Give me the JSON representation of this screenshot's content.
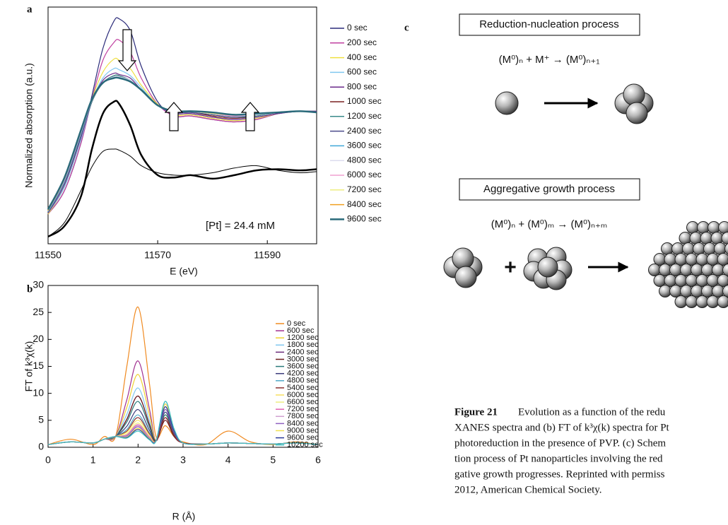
{
  "chart_data": [
    {
      "type": "line",
      "panel": "a",
      "ylabel": "Normalized absorption (a.u.)",
      "xlabel": "E (eV)",
      "annotation": "[Pt] = 24.4 mM",
      "xlim": [
        11550,
        11599
      ],
      "ylim": [
        0,
        2
      ],
      "xticks": [
        11550,
        11570,
        11590
      ],
      "x": [
        11550,
        11553,
        11556,
        11558,
        11560,
        11562,
        11563,
        11565,
        11567,
        11570,
        11573,
        11576,
        11580,
        11584,
        11588,
        11592,
        11596,
        11599
      ],
      "series": [
        {
          "name": "0 sec",
          "color": "#2b2b7a",
          "values": [
            0.25,
            0.45,
            0.85,
            1.25,
            1.65,
            1.88,
            1.9,
            1.8,
            1.5,
            1.2,
            1.08,
            1.08,
            1.05,
            1.03,
            1.05,
            1.1,
            1.12,
            1.12
          ]
        },
        {
          "name": "200 sec",
          "color": "#c040a0",
          "values": [
            0.25,
            0.45,
            0.85,
            1.22,
            1.55,
            1.7,
            1.72,
            1.62,
            1.4,
            1.18,
            1.08,
            1.08,
            1.05,
            1.03,
            1.05,
            1.1,
            1.12,
            1.12
          ]
        },
        {
          "name": "400 sec",
          "color": "#efe040",
          "values": [
            0.25,
            0.48,
            0.88,
            1.22,
            1.45,
            1.56,
            1.55,
            1.48,
            1.34,
            1.18,
            1.09,
            1.09,
            1.06,
            1.04,
            1.06,
            1.1,
            1.12,
            1.12
          ]
        },
        {
          "name": "600 sec",
          "color": "#80c8f0",
          "values": [
            0.26,
            0.48,
            0.88,
            1.2,
            1.4,
            1.48,
            1.47,
            1.42,
            1.32,
            1.17,
            1.1,
            1.1,
            1.07,
            1.05,
            1.07,
            1.1,
            1.12,
            1.12
          ]
        },
        {
          "name": "800 sec",
          "color": "#6a2a8a",
          "values": [
            0.26,
            0.5,
            0.9,
            1.2,
            1.38,
            1.44,
            1.43,
            1.4,
            1.3,
            1.17,
            1.1,
            1.1,
            1.07,
            1.05,
            1.07,
            1.1,
            1.12,
            1.12
          ]
        },
        {
          "name": "1000 sec",
          "color": "#7a2020",
          "values": [
            0.27,
            0.52,
            0.92,
            1.2,
            1.36,
            1.42,
            1.42,
            1.38,
            1.3,
            1.17,
            1.11,
            1.11,
            1.08,
            1.06,
            1.08,
            1.11,
            1.12,
            1.11
          ]
        },
        {
          "name": "1200 sec",
          "color": "#3a8a8a",
          "values": [
            0.27,
            0.52,
            0.92,
            1.2,
            1.36,
            1.42,
            1.42,
            1.38,
            1.3,
            1.17,
            1.11,
            1.11,
            1.09,
            1.07,
            1.08,
            1.11,
            1.12,
            1.11
          ]
        },
        {
          "name": "2400 sec",
          "color": "#4a4a8a",
          "values": [
            0.27,
            0.53,
            0.93,
            1.21,
            1.36,
            1.41,
            1.41,
            1.38,
            1.3,
            1.17,
            1.11,
            1.11,
            1.09,
            1.07,
            1.09,
            1.11,
            1.12,
            1.11
          ]
        },
        {
          "name": "3600 sec",
          "color": "#40a8d8",
          "values": [
            0.27,
            0.53,
            0.93,
            1.21,
            1.36,
            1.41,
            1.41,
            1.38,
            1.3,
            1.17,
            1.12,
            1.12,
            1.1,
            1.08,
            1.09,
            1.11,
            1.12,
            1.11
          ]
        },
        {
          "name": "4800 sec",
          "color": "#dcdcee",
          "values": [
            0.28,
            0.54,
            0.94,
            1.21,
            1.36,
            1.41,
            1.41,
            1.38,
            1.3,
            1.17,
            1.12,
            1.12,
            1.1,
            1.08,
            1.09,
            1.11,
            1.12,
            1.11
          ]
        },
        {
          "name": "6000 sec",
          "color": "#f0a0d0",
          "values": [
            0.28,
            0.54,
            0.94,
            1.21,
            1.36,
            1.4,
            1.4,
            1.37,
            1.3,
            1.17,
            1.12,
            1.12,
            1.1,
            1.08,
            1.1,
            1.11,
            1.12,
            1.11
          ]
        },
        {
          "name": "7200 sec",
          "color": "#eeee80",
          "values": [
            0.28,
            0.55,
            0.95,
            1.22,
            1.36,
            1.4,
            1.4,
            1.37,
            1.3,
            1.17,
            1.12,
            1.12,
            1.1,
            1.09,
            1.1,
            1.11,
            1.12,
            1.11
          ]
        },
        {
          "name": "8400 sec",
          "color": "#f0a020",
          "values": [
            0.28,
            0.55,
            0.95,
            1.22,
            1.36,
            1.4,
            1.4,
            1.37,
            1.3,
            1.17,
            1.12,
            1.12,
            1.11,
            1.09,
            1.1,
            1.11,
            1.12,
            1.11
          ]
        },
        {
          "name": "9600 sec",
          "color": "#2a6a7a",
          "width": 2.5,
          "values": [
            0.29,
            0.56,
            0.96,
            1.22,
            1.36,
            1.4,
            1.4,
            1.37,
            1.3,
            1.17,
            1.12,
            1.12,
            1.11,
            1.09,
            1.1,
            1.11,
            1.12,
            1.11
          ]
        },
        {
          "color": "#000000",
          "width": 2.5,
          "values": [
            0.06,
            0.15,
            0.4,
            0.8,
            1.1,
            1.2,
            1.18,
            1.0,
            0.75,
            0.58,
            0.56,
            0.58,
            0.55,
            0.58,
            0.62,
            0.63,
            0.62,
            0.63
          ]
        },
        {
          "color": "#000000",
          "width": 1,
          "values": [
            0.06,
            0.18,
            0.45,
            0.65,
            0.78,
            0.8,
            0.79,
            0.74,
            0.66,
            0.6,
            0.58,
            0.58,
            0.6,
            0.64,
            0.66,
            0.62,
            0.6,
            0.61
          ]
        }
      ]
    },
    {
      "type": "line",
      "panel": "b",
      "ylabel": "FT of k³χ(k)",
      "xlabel": "R (Å)",
      "xlim": [
        0,
        6
      ],
      "ylim": [
        0,
        30
      ],
      "xticks": [
        0,
        1,
        2,
        3,
        4,
        5,
        6
      ],
      "yticks": [
        0,
        5,
        10,
        15,
        20,
        25,
        30
      ],
      "x": [
        0,
        0.5,
        1,
        1.25,
        1.5,
        1.75,
        2,
        2.25,
        2.4,
        2.6,
        2.8,
        3,
        3.5,
        4,
        4.5,
        5,
        5.5,
        6
      ],
      "series": [
        {
          "name": "0 sec",
          "color": "#f08a20",
          "values": [
            0.5,
            1.5,
            0.5,
            2,
            2,
            15,
            26,
            12,
            2,
            4,
            2,
            1,
            0.5,
            3,
            1,
            0.5,
            1,
            0.5
          ]
        },
        {
          "name": "600 sec",
          "color": "#a03090",
          "values": [
            0.5,
            1,
            0.8,
            1.5,
            2,
            8.8,
            16,
            7.2,
            1.2,
            5.5,
            2.2,
            0.8,
            0.6,
            0.8,
            0.7,
            0.6,
            0.8,
            0.5
          ]
        },
        {
          "name": "1200 sec",
          "color": "#f0d030",
          "values": [
            0.5,
            1,
            0.8,
            1.5,
            2,
            7.4,
            13.5,
            6.1,
            1.2,
            6,
            2.4,
            0.8,
            0.6,
            0.8,
            0.7,
            0.6,
            0.8,
            0.5
          ]
        },
        {
          "name": "1800 sec",
          "color": "#80c8f0",
          "values": [
            0.5,
            1,
            0.8,
            1.5,
            2,
            6.1,
            11,
            5.0,
            1.2,
            6.5,
            2.6,
            0.8,
            0.6,
            0.8,
            0.7,
            0.6,
            0.8,
            0.5
          ]
        },
        {
          "name": "2400 sec",
          "color": "#6a2a7a",
          "values": [
            0.5,
            1,
            0.8,
            1.5,
            2,
            5.2,
            9.5,
            4.3,
            1.2,
            7,
            2.8,
            0.8,
            0.6,
            0.8,
            0.7,
            0.6,
            0.8,
            0.5
          ]
        },
        {
          "name": "3000 sec",
          "color": "#6a1a1a",
          "values": [
            0.5,
            1,
            0.8,
            1.5,
            2,
            5.2,
            9.5,
            4.3,
            1.2,
            5,
            2,
            0.8,
            0.6,
            0.8,
            0.7,
            0.6,
            0.8,
            0.5
          ]
        },
        {
          "name": "3600 sec",
          "color": "#2a7a7a",
          "values": [
            0.5,
            1,
            0.8,
            1.5,
            2,
            4.7,
            8.5,
            3.8,
            1.2,
            6,
            2.4,
            0.8,
            0.6,
            0.8,
            0.7,
            0.6,
            0.8,
            0.5
          ]
        },
        {
          "name": "4200 sec",
          "color": "#3a3a7a",
          "values": [
            0.5,
            1,
            0.8,
            1.5,
            2,
            3.9,
            7,
            3.2,
            1.2,
            6.5,
            2.6,
            0.8,
            0.6,
            0.8,
            0.7,
            0.6,
            0.8,
            0.5
          ]
        },
        {
          "name": "4800 sec",
          "color": "#50a8c8",
          "values": [
            0.5,
            1,
            0.8,
            1.5,
            2,
            3.3,
            6,
            2.7,
            1.2,
            8.5,
            3.4,
            0.8,
            0.6,
            0.8,
            0.7,
            0.6,
            0.8,
            0.5
          ]
        },
        {
          "name": "5400 sec",
          "color": "#8a3030",
          "values": [
            0.5,
            1,
            0.8,
            1.5,
            2,
            3.0,
            5.5,
            2.5,
            1.2,
            5.5,
            2.2,
            0.8,
            0.6,
            0.8,
            0.7,
            0.6,
            0.8,
            0.5
          ]
        },
        {
          "name": "6000 sec",
          "color": "#f8e060",
          "values": [
            0.5,
            1,
            0.8,
            1.5,
            2,
            2.8,
            5,
            2.3,
            1.2,
            7,
            2.8,
            0.8,
            0.6,
            0.8,
            0.7,
            0.6,
            0.8,
            0.5
          ]
        },
        {
          "name": "6600 sec",
          "color": "#eeee80",
          "values": [
            0.5,
            1,
            0.8,
            1.5,
            2,
            2.5,
            4.5,
            2.0,
            1.2,
            7.5,
            3,
            0.8,
            0.6,
            0.8,
            0.7,
            0.6,
            0.8,
            0.5
          ]
        },
        {
          "name": "7200 sec",
          "color": "#e060b0",
          "values": [
            0.5,
            1,
            0.8,
            1.5,
            2,
            2.3,
            4.2,
            1.9,
            1.2,
            8,
            3.2,
            0.8,
            0.6,
            0.8,
            0.7,
            0.6,
            0.8,
            0.5
          ]
        },
        {
          "name": "7800 sec",
          "color": "#d0a0d0",
          "values": [
            0.5,
            1,
            0.8,
            1.5,
            2,
            2.2,
            4,
            1.8,
            1.2,
            7.5,
            3,
            0.8,
            0.6,
            0.8,
            0.7,
            0.6,
            0.8,
            0.5
          ]
        },
        {
          "name": "8400 sec",
          "color": "#9060c0",
          "values": [
            0.5,
            1,
            0.8,
            1.5,
            2,
            2.1,
            3.8,
            1.7,
            1.2,
            7,
            2.8,
            0.8,
            0.6,
            0.8,
            0.7,
            0.6,
            0.8,
            0.5
          ]
        },
        {
          "name": "9000 sec",
          "color": "#f0e050",
          "values": [
            0.5,
            1,
            0.8,
            1.5,
            2,
            1.9,
            3.5,
            1.6,
            1.2,
            8,
            3.2,
            0.8,
            0.6,
            0.8,
            0.7,
            0.6,
            0.8,
            0.5
          ]
        },
        {
          "name": "9600 sec",
          "color": "#2a3a9a",
          "values": [
            0.5,
            1,
            0.8,
            1.5,
            2,
            1.8,
            3.3,
            1.5,
            1.2,
            7.5,
            3,
            0.8,
            0.6,
            0.8,
            0.7,
            0.6,
            0.8,
            0.5
          ]
        },
        {
          "name": "10200 sec",
          "color": "#40c0c0",
          "values": [
            0.5,
            1,
            0.8,
            1.5,
            2,
            1.7,
            3,
            1.4,
            1.2,
            8.5,
            3.4,
            0.8,
            0.6,
            0.8,
            0.7,
            0.6,
            0.8,
            0.5
          ]
        }
      ]
    }
  ],
  "scheme": {
    "panel": "c",
    "steps": [
      {
        "label": "Reduction-nucleation process",
        "equation": "(M⁰)ₙ + M⁺ → (M⁰)ₙ₊₁"
      },
      {
        "label": "Aggregative growth process",
        "equation": "(M⁰)ₙ + (M⁰)ₘ → (M⁰)ₙ₊ₘ",
        "plus": "+"
      }
    ]
  },
  "caption": {
    "label": "Figure 21",
    "lines": [
      "Evolution as a function of the redu",
      "XANES spectra and (b) FT of k³χ(k) spectra for Pt",
      "photoreduction in the presence of PVP. (c) Schem",
      "tion process of Pt nanoparticles involving the red",
      "gative growth progresses. Reprinted with permiss",
      "2012, American Chemical Society."
    ]
  }
}
